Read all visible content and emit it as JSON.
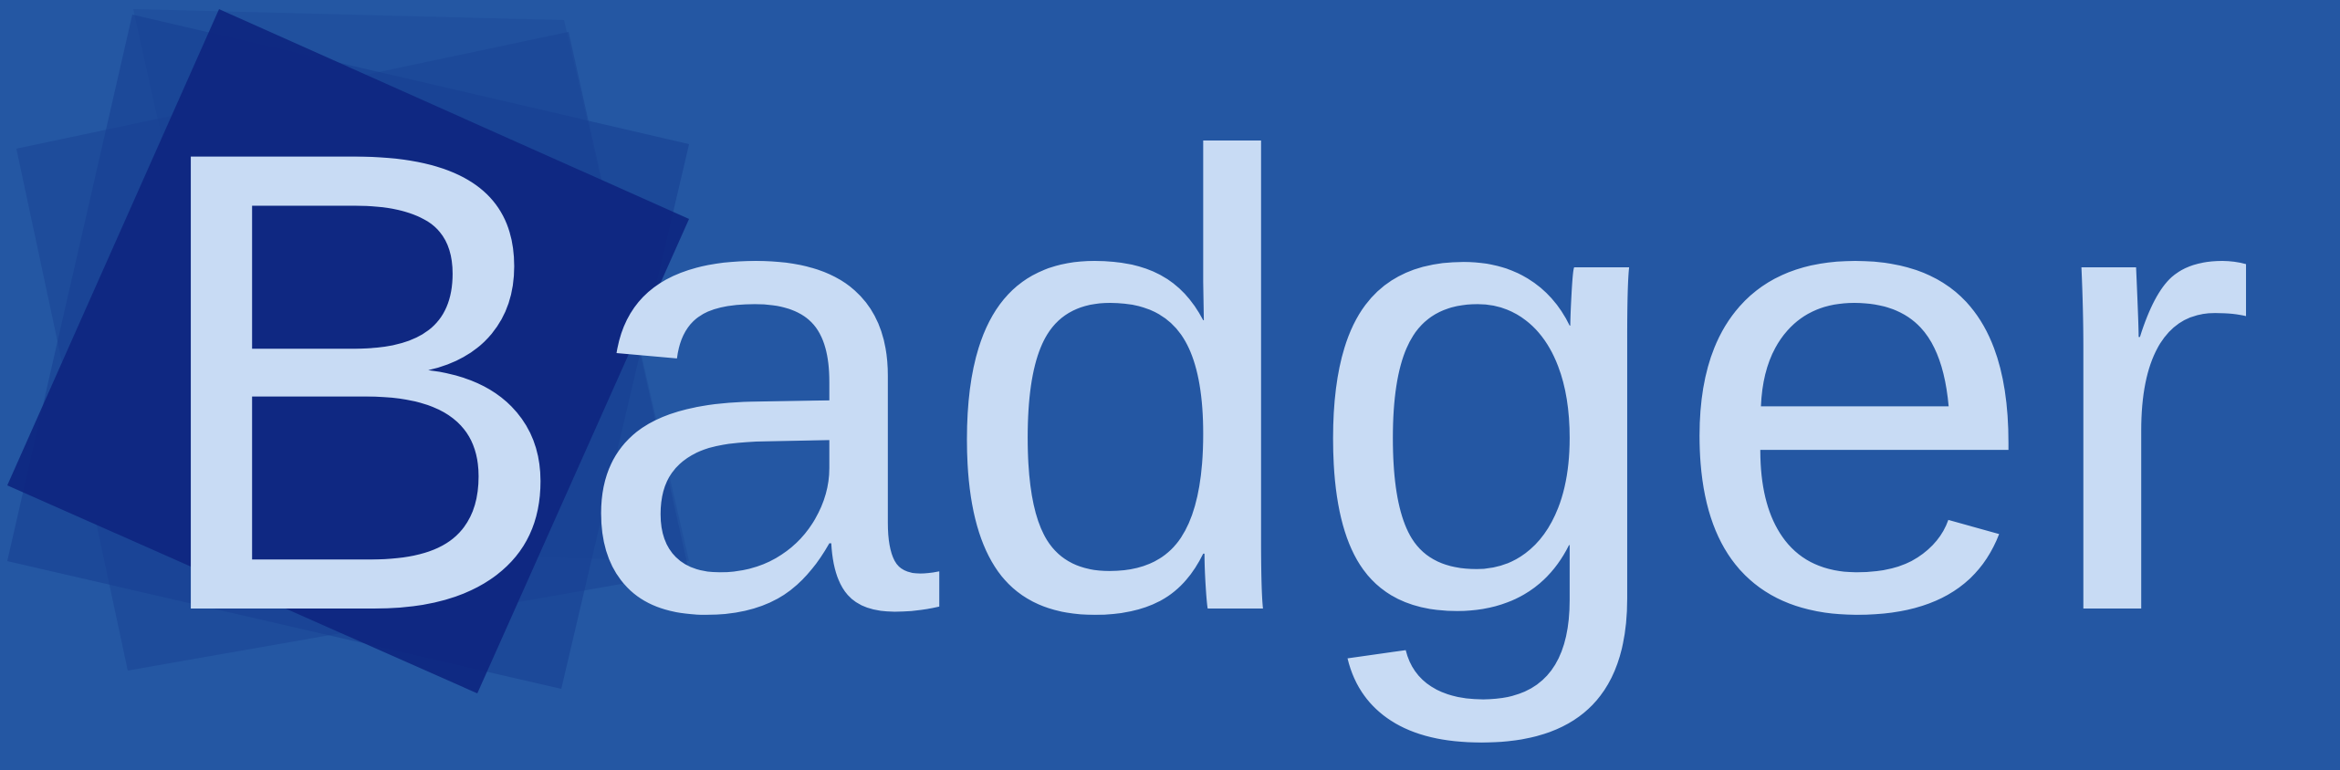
{
  "logo": {
    "initial": "B",
    "rest": "adger",
    "colors": {
      "background": "#2457a3",
      "square_dark": "#0e2680",
      "square_mid": "#16388f",
      "text": "#c8dbf4"
    }
  }
}
